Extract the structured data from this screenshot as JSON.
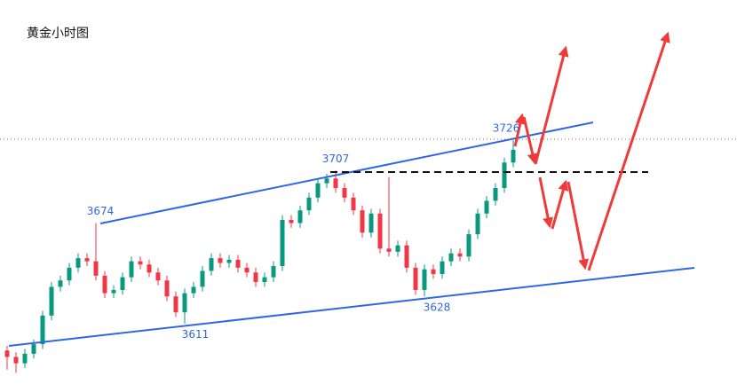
{
  "chart_data": {
    "type": "candlestick",
    "title": "黄金小时图",
    "open": [
      3594,
      3590,
      3586,
      3592,
      3598,
      3616,
      3634,
      3638,
      3646,
      3652,
      3650,
      3641,
      3630,
      3632,
      3640,
      3650,
      3648,
      3643,
      3638,
      3628,
      3618,
      3630,
      3634,
      3644,
      3652,
      3649,
      3651,
      3646,
      3643,
      3637,
      3640,
      3647,
      3676,
      3674,
      3682,
      3690,
      3699,
      3702,
      3696,
      3690,
      3682,
      3668,
      3680,
      3658,
      3656,
      3660,
      3646,
      3632,
      3645,
      3642,
      3650,
      3655,
      3653,
      3667,
      3680,
      3688,
      3696,
      3712
    ],
    "high": [
      3597,
      3593,
      3595,
      3601,
      3619,
      3637,
      3641,
      3649,
      3655,
      3655,
      3674,
      3644,
      3635,
      3643,
      3653,
      3653,
      3651,
      3646,
      3641,
      3631,
      3633,
      3637,
      3647,
      3655,
      3655,
      3654,
      3654,
      3649,
      3646,
      3643,
      3650,
      3679,
      3679,
      3685,
      3693,
      3702,
      3705,
      3707,
      3699,
      3693,
      3685,
      3683,
      3683,
      3703,
      3663,
      3663,
      3649,
      3648,
      3648,
      3653,
      3658,
      3658,
      3670,
      3683,
      3691,
      3699,
      3715,
      3726
    ],
    "low": [
      3582,
      3580,
      3583,
      3589,
      3595,
      3613,
      3631,
      3635,
      3643,
      3647,
      3638,
      3627,
      3627,
      3629,
      3637,
      3645,
      3640,
      3635,
      3625,
      3615,
      3611,
      3627,
      3631,
      3641,
      3646,
      3646,
      3643,
      3640,
      3634,
      3634,
      3637,
      3644,
      3671,
      3671,
      3679,
      3687,
      3696,
      3693,
      3687,
      3679,
      3665,
      3665,
      3655,
      3653,
      3653,
      3643,
      3629,
      3628,
      3639,
      3639,
      3647,
      3650,
      3650,
      3664,
      3677,
      3685,
      3693,
      3709
    ],
    "close": [
      3590,
      3586,
      3592,
      3598,
      3616,
      3634,
      3638,
      3646,
      3652,
      3650,
      3641,
      3630,
      3632,
      3640,
      3650,
      3648,
      3643,
      3638,
      3628,
      3618,
      3630,
      3634,
      3644,
      3652,
      3649,
      3651,
      3646,
      3643,
      3637,
      3640,
      3647,
      3676,
      3674,
      3682,
      3690,
      3699,
      3702,
      3696,
      3690,
      3682,
      3668,
      3680,
      3658,
      3656,
      3660,
      3646,
      3632,
      3645,
      3642,
      3650,
      3655,
      3653,
      3667,
      3680,
      3688,
      3696,
      3712,
      3720
    ],
    "up_color": "#089981",
    "down_color": "#f23645",
    "ylim": [
      3568,
      3814
    ],
    "price_labels": [
      3674,
      3611,
      3707,
      3628,
      3726
    ]
  }
}
